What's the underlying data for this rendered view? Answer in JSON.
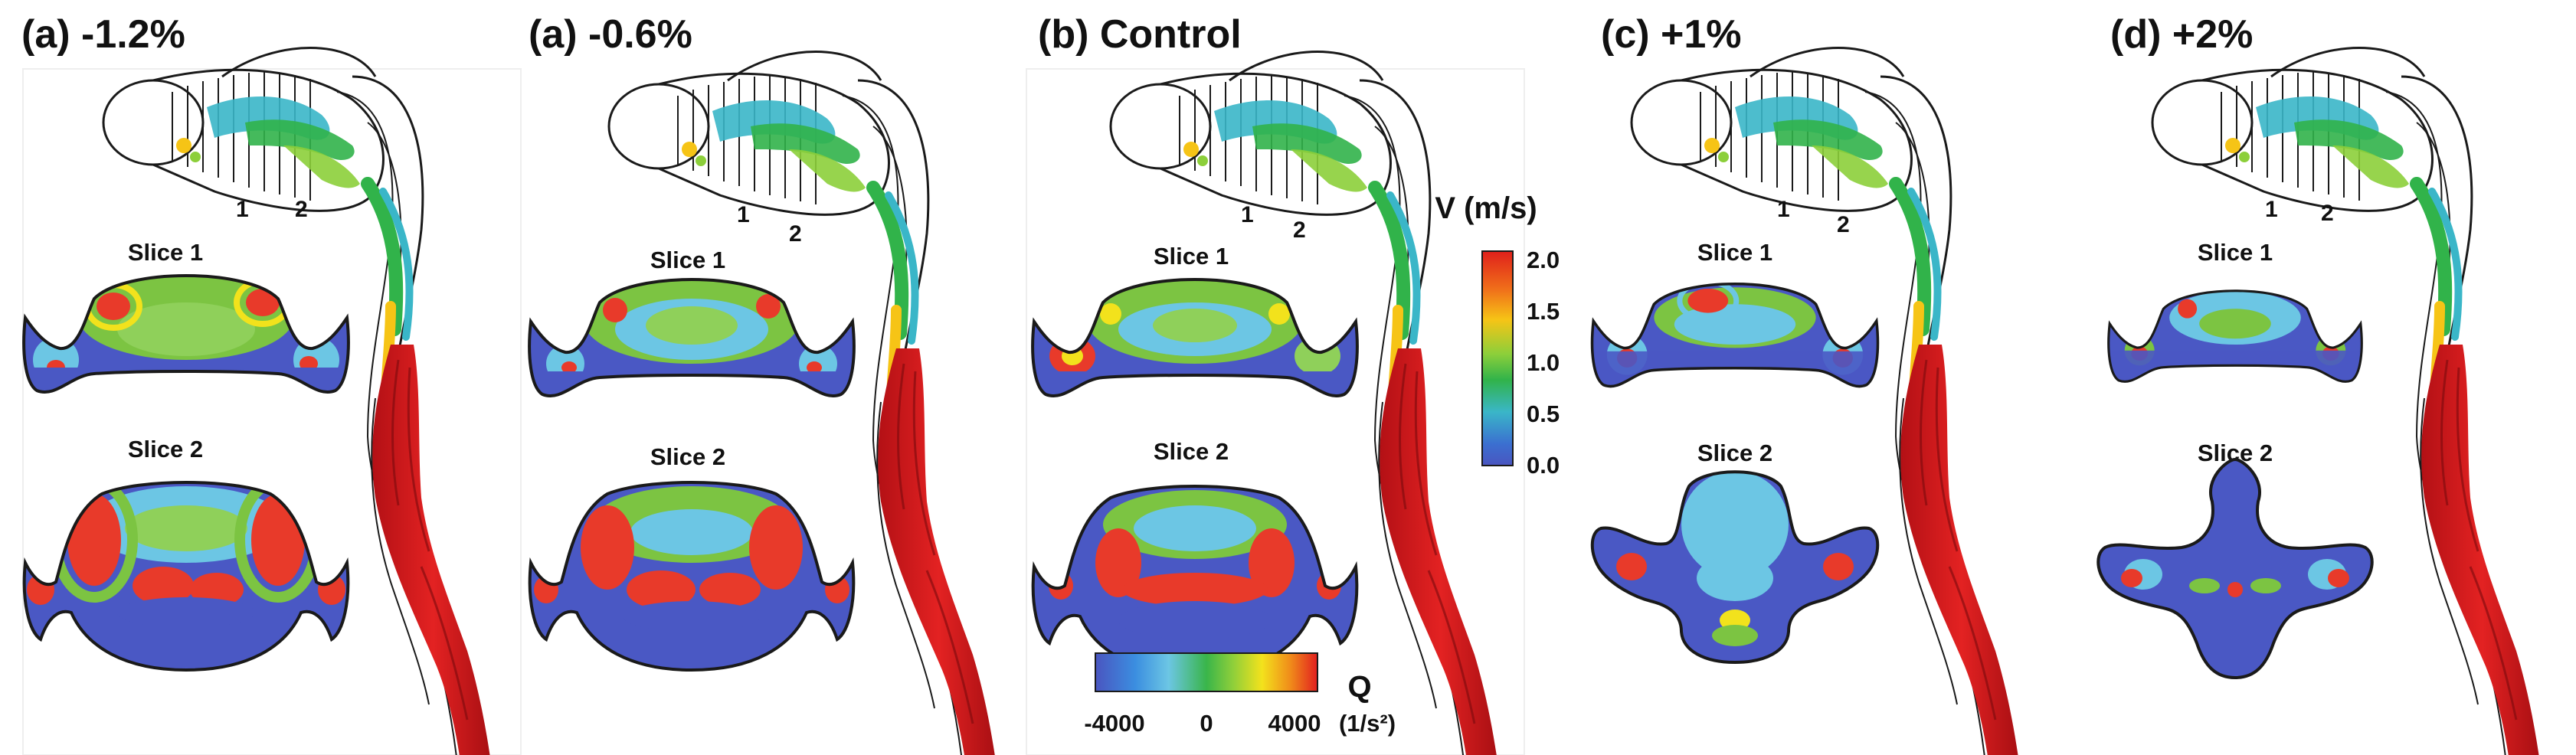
{
  "panels": [
    {
      "title": "(a) -1.2%",
      "slice1_label": "Slice 1",
      "slice2_label": "Slice 2",
      "marker1": "1",
      "marker2": "2"
    },
    {
      "title": "(a) -0.6%",
      "slice1_label": "Slice 1",
      "slice2_label": "Slice 2",
      "marker1": "1",
      "marker2": "2"
    },
    {
      "title": "(b) Control",
      "slice1_label": "Slice 1",
      "slice2_label": "Slice 2",
      "marker1": "1",
      "marker2": "2"
    },
    {
      "title": "(c) +1%",
      "slice1_label": "Slice 1",
      "slice2_label": "Slice 2",
      "marker1": "1",
      "marker2": "2"
    },
    {
      "title": "(d) +2%",
      "slice1_label": "Slice 1",
      "slice2_label": "Slice 2",
      "marker1": "1",
      "marker2": "2"
    }
  ],
  "velocity_colorbar": {
    "title": "V (m/s)",
    "ticks": [
      "2.0",
      "1.5",
      "1.0",
      "0.5",
      "0.0"
    ],
    "colors": [
      "#e0201b",
      "#f0701a",
      "#f6c416",
      "#8ccf3a",
      "#31b34a",
      "#3ab6c8",
      "#3b6fd0",
      "#4a55c0"
    ]
  },
  "q_colorbar": {
    "title": "Q",
    "unit": "(1/s²)",
    "ticks": [
      "-4000",
      "0",
      "4000"
    ],
    "colors": [
      "#4a55c0",
      "#3b8ee0",
      "#6cc6e4",
      "#39b54a",
      "#8fcf3a",
      "#f3e21c",
      "#f08a1a",
      "#e21f1f"
    ]
  },
  "palette": {
    "background_blue": "#4a58c4",
    "light_blue": "#6cc6e4",
    "green": "#7cc442",
    "red": "#e83a2a",
    "yellow": "#f2e21c",
    "vessel_red": "#d8181b",
    "outline": "#1a1a1a"
  }
}
